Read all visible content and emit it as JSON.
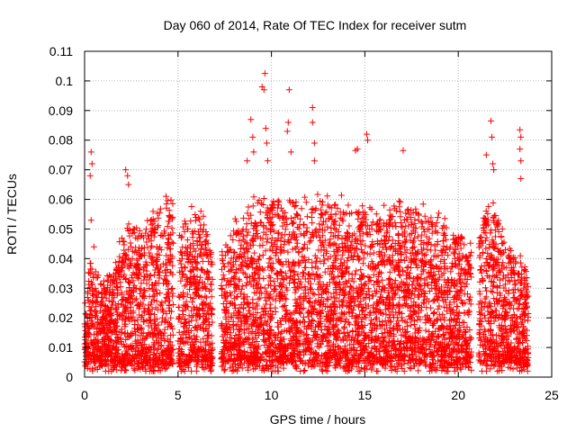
{
  "chart_data": {
    "type": "scatter",
    "title": "Day 060 of 2014, Rate Of TEC Index for receiver sutm",
    "xlabel": "GPS time / hours",
    "ylabel": "ROTI / TECUs",
    "xlim": [
      0,
      25
    ],
    "ylim": [
      0,
      0.11
    ],
    "xticks": [
      0,
      5,
      10,
      15,
      20,
      25
    ],
    "xtick_labels": [
      "0",
      "5",
      "10",
      "15",
      "20",
      "25"
    ],
    "yticks": [
      0,
      0.01,
      0.02,
      0.03,
      0.04,
      0.05,
      0.06,
      0.07,
      0.08,
      0.09,
      0.1,
      0.11
    ],
    "ytick_labels": [
      "0",
      "0.01",
      "0.02",
      "0.03",
      "0.04",
      "0.05",
      "0.06",
      "0.07",
      "0.08",
      "0.09",
      "0.1",
      "0.11"
    ],
    "grid": true,
    "marker": "+",
    "color": "#ff0000",
    "data_segments": [
      {
        "start": 0.0,
        "end": 4.75,
        "baseline": 0.006
      },
      {
        "start": 5.0,
        "end": 6.85,
        "baseline": 0.006
      },
      {
        "start": 7.3,
        "end": 20.7,
        "baseline": 0.006
      },
      {
        "start": 21.1,
        "end": 23.75,
        "baseline": 0.006
      }
    ],
    "envelope": [
      {
        "x": 0.0,
        "y": 0.02
      },
      {
        "x": 0.3,
        "y": 0.04
      },
      {
        "x": 0.5,
        "y": 0.035
      },
      {
        "x": 1.0,
        "y": 0.03
      },
      {
        "x": 1.5,
        "y": 0.035
      },
      {
        "x": 2.0,
        "y": 0.045
      },
      {
        "x": 2.5,
        "y": 0.05
      },
      {
        "x": 3.0,
        "y": 0.05
      },
      {
        "x": 3.5,
        "y": 0.055
      },
      {
        "x": 4.0,
        "y": 0.055
      },
      {
        "x": 4.5,
        "y": 0.06
      },
      {
        "x": 4.75,
        "y": 0.055
      },
      {
        "x": 5.0,
        "y": 0.045
      },
      {
        "x": 5.5,
        "y": 0.055
      },
      {
        "x": 6.0,
        "y": 0.055
      },
      {
        "x": 6.5,
        "y": 0.05
      },
      {
        "x": 6.85,
        "y": 0.045
      },
      {
        "x": 7.3,
        "y": 0.04
      },
      {
        "x": 8.0,
        "y": 0.05
      },
      {
        "x": 9.0,
        "y": 0.058
      },
      {
        "x": 10.0,
        "y": 0.058
      },
      {
        "x": 11.0,
        "y": 0.058
      },
      {
        "x": 12.0,
        "y": 0.058
      },
      {
        "x": 13.0,
        "y": 0.058
      },
      {
        "x": 14.0,
        "y": 0.058
      },
      {
        "x": 15.0,
        "y": 0.057
      },
      {
        "x": 16.0,
        "y": 0.055
      },
      {
        "x": 17.0,
        "y": 0.057
      },
      {
        "x": 18.0,
        "y": 0.057
      },
      {
        "x": 19.0,
        "y": 0.052
      },
      {
        "x": 20.0,
        "y": 0.048
      },
      {
        "x": 20.7,
        "y": 0.045
      },
      {
        "x": 21.1,
        "y": 0.045
      },
      {
        "x": 21.7,
        "y": 0.058
      },
      {
        "x": 22.5,
        "y": 0.045
      },
      {
        "x": 23.0,
        "y": 0.04
      },
      {
        "x": 23.75,
        "y": 0.035
      }
    ],
    "notable_points": [
      {
        "x": 0.35,
        "y": 0.076
      },
      {
        "x": 0.4,
        "y": 0.072
      },
      {
        "x": 0.3,
        "y": 0.068
      },
      {
        "x": 0.35,
        "y": 0.053
      },
      {
        "x": 0.5,
        "y": 0.044
      },
      {
        "x": 2.2,
        "y": 0.07
      },
      {
        "x": 2.3,
        "y": 0.068
      },
      {
        "x": 2.35,
        "y": 0.065
      },
      {
        "x": 8.7,
        "y": 0.073
      },
      {
        "x": 8.9,
        "y": 0.087
      },
      {
        "x": 9.0,
        "y": 0.081
      },
      {
        "x": 9.05,
        "y": 0.076
      },
      {
        "x": 9.5,
        "y": 0.098
      },
      {
        "x": 9.6,
        "y": 0.097
      },
      {
        "x": 9.65,
        "y": 0.1025
      },
      {
        "x": 9.7,
        "y": 0.084
      },
      {
        "x": 9.75,
        "y": 0.079
      },
      {
        "x": 9.8,
        "y": 0.073
      },
      {
        "x": 10.95,
        "y": 0.097
      },
      {
        "x": 10.9,
        "y": 0.086
      },
      {
        "x": 10.85,
        "y": 0.083
      },
      {
        "x": 11.05,
        "y": 0.076
      },
      {
        "x": 12.2,
        "y": 0.091
      },
      {
        "x": 12.2,
        "y": 0.086
      },
      {
        "x": 12.3,
        "y": 0.079
      },
      {
        "x": 12.3,
        "y": 0.073
      },
      {
        "x": 14.5,
        "y": 0.0765
      },
      {
        "x": 14.6,
        "y": 0.077
      },
      {
        "x": 15.1,
        "y": 0.082
      },
      {
        "x": 15.15,
        "y": 0.08
      },
      {
        "x": 17.05,
        "y": 0.0765
      },
      {
        "x": 21.5,
        "y": 0.075
      },
      {
        "x": 21.75,
        "y": 0.0865
      },
      {
        "x": 21.8,
        "y": 0.081
      },
      {
        "x": 21.85,
        "y": 0.072
      },
      {
        "x": 21.9,
        "y": 0.07
      },
      {
        "x": 23.3,
        "y": 0.0835
      },
      {
        "x": 23.35,
        "y": 0.081
      },
      {
        "x": 23.3,
        "y": 0.077
      },
      {
        "x": 23.35,
        "y": 0.073
      },
      {
        "x": 23.35,
        "y": 0.067
      }
    ]
  }
}
